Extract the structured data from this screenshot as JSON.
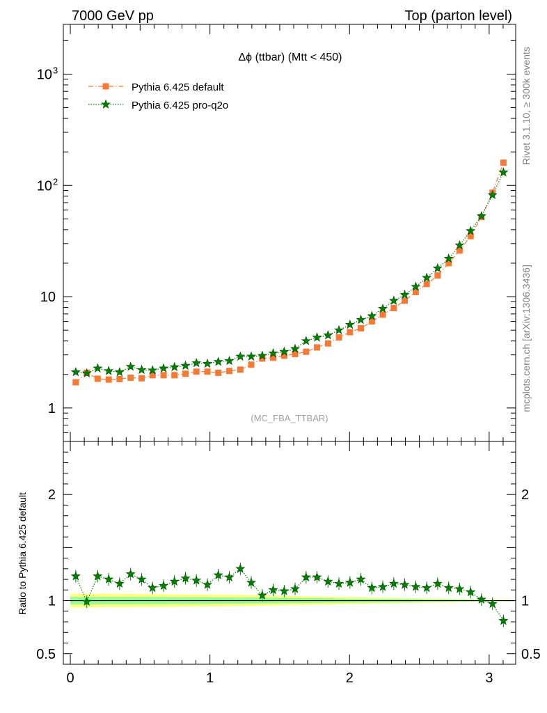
{
  "header": {
    "left": "7000 GeV pp",
    "right": "Top (parton level)"
  },
  "side_text": {
    "rivet": "Rivet 3.1.10, ≥ 300k events",
    "mcplots": "mcplots.cern.ch [arXiv:1306.3436]"
  },
  "colors": {
    "default": "#f57a35",
    "proq2o": "#008000",
    "band_inner": "#98fb98",
    "band_outer": "#ffff80"
  },
  "chart_data": [
    {
      "type": "line",
      "title": "Δϕ (ttbar) (Mtt < 450)",
      "analysis_tag": "(MC_FBA_TTBAR)",
      "ylog": true,
      "ylim": [
        0.5,
        2800
      ],
      "xlim": [
        -0.05,
        3.19
      ],
      "yticks": [
        {
          "v": 1,
          "label": "1"
        },
        {
          "v": 10,
          "label": "10"
        },
        {
          "v": 100,
          "label": "10",
          "sup": "2"
        },
        {
          "v": 1000,
          "label": "10",
          "sup": "3"
        }
      ],
      "legend": [
        {
          "name": "Pythia 6.425 default",
          "color": "#f57a35",
          "marker": "square"
        },
        {
          "name": "Pythia 6.425 pro-q2o",
          "color": "#008000",
          "marker": "star"
        }
      ],
      "x": [
        0.039,
        0.118,
        0.196,
        0.275,
        0.353,
        0.432,
        0.511,
        0.589,
        0.668,
        0.746,
        0.825,
        0.903,
        0.982,
        1.06,
        1.139,
        1.218,
        1.296,
        1.375,
        1.453,
        1.532,
        1.61,
        1.689,
        1.767,
        1.846,
        1.924,
        2.003,
        2.081,
        2.16,
        2.238,
        2.317,
        2.395,
        2.474,
        2.553,
        2.631,
        2.71,
        2.788,
        2.867,
        2.945,
        3.024,
        3.102
      ],
      "series": [
        {
          "name": "Pythia 6.425 default",
          "marker": "square",
          "values": [
            1.7,
            2.07,
            1.83,
            1.8,
            1.82,
            1.87,
            1.85,
            1.97,
            1.97,
            1.97,
            2.03,
            2.12,
            2.12,
            2.07,
            2.15,
            2.21,
            2.45,
            2.78,
            2.83,
            2.95,
            3.05,
            3.2,
            3.5,
            3.8,
            4.3,
            4.8,
            5.2,
            6.0,
            6.9,
            7.9,
            9.2,
            11.0,
            13.0,
            15.5,
            20.0,
            26.0,
            35.0,
            52.0,
            86.0,
            160.0
          ]
        },
        {
          "name": "Pythia 6.425 pro-q2o",
          "marker": "star",
          "values": [
            2.1,
            2.05,
            2.27,
            2.15,
            2.1,
            2.35,
            2.2,
            2.18,
            2.27,
            2.33,
            2.4,
            2.53,
            2.5,
            2.6,
            2.65,
            2.9,
            2.9,
            2.95,
            3.1,
            3.2,
            3.4,
            4.0,
            4.3,
            4.5,
            5.0,
            5.6,
            6.2,
            6.7,
            7.8,
            9.2,
            10.4,
            12.3,
            14.8,
            18.0,
            22.0,
            29.0,
            39.0,
            53.0,
            82.0,
            131.0
          ]
        }
      ]
    },
    {
      "type": "line",
      "ylabel": "Ratio to Pythia 6.425 default",
      "ylim": [
        0.4,
        2.5
      ],
      "xlim": [
        -0.05,
        3.19
      ],
      "yticks": [
        {
          "v": 0.5,
          "label": "0.5"
        },
        {
          "v": 1,
          "label": "1"
        },
        {
          "v": 2,
          "label": "2"
        }
      ],
      "xticks": [
        {
          "v": 0,
          "label": "0"
        },
        {
          "v": 1,
          "label": "1"
        },
        {
          "v": 2,
          "label": "2"
        },
        {
          "v": 3,
          "label": "3"
        }
      ],
      "reference_line": 1.0,
      "band_inner_halfwidth": [
        0.035,
        0.035,
        0.035,
        0.034,
        0.034,
        0.034,
        0.033,
        0.033,
        0.033,
        0.032,
        0.032,
        0.031,
        0.031,
        0.03,
        0.03,
        0.029,
        0.028,
        0.027,
        0.026,
        0.025,
        0.024,
        0.023,
        0.022,
        0.021,
        0.02,
        0.019,
        0.018,
        0.017,
        0.016,
        0.015,
        0.014,
        0.013,
        0.012,
        0.011,
        0.01,
        0.009,
        0.008,
        0.007,
        0.006,
        0.005
      ],
      "band_outer_halfwidth": [
        0.065,
        0.065,
        0.064,
        0.064,
        0.063,
        0.063,
        0.062,
        0.061,
        0.06,
        0.059,
        0.058,
        0.057,
        0.056,
        0.055,
        0.054,
        0.053,
        0.051,
        0.049,
        0.047,
        0.045,
        0.043,
        0.041,
        0.039,
        0.037,
        0.035,
        0.033,
        0.031,
        0.029,
        0.027,
        0.025,
        0.023,
        0.021,
        0.019,
        0.017,
        0.015,
        0.013,
        0.011,
        0.01,
        0.009,
        0.008
      ],
      "series": [
        {
          "name": "Pythia 6.425 pro-q2o",
          "marker": "star",
          "values": [
            1.23,
            0.99,
            1.23,
            1.2,
            1.16,
            1.25,
            1.2,
            1.12,
            1.14,
            1.18,
            1.21,
            1.19,
            1.15,
            1.24,
            1.22,
            1.3,
            1.17,
            1.05,
            1.1,
            1.09,
            1.11,
            1.22,
            1.22,
            1.18,
            1.16,
            1.17,
            1.2,
            1.12,
            1.13,
            1.16,
            1.15,
            1.13,
            1.12,
            1.16,
            1.12,
            1.11,
            1.08,
            1.01,
            0.97,
            0.81
          ]
        }
      ]
    }
  ]
}
